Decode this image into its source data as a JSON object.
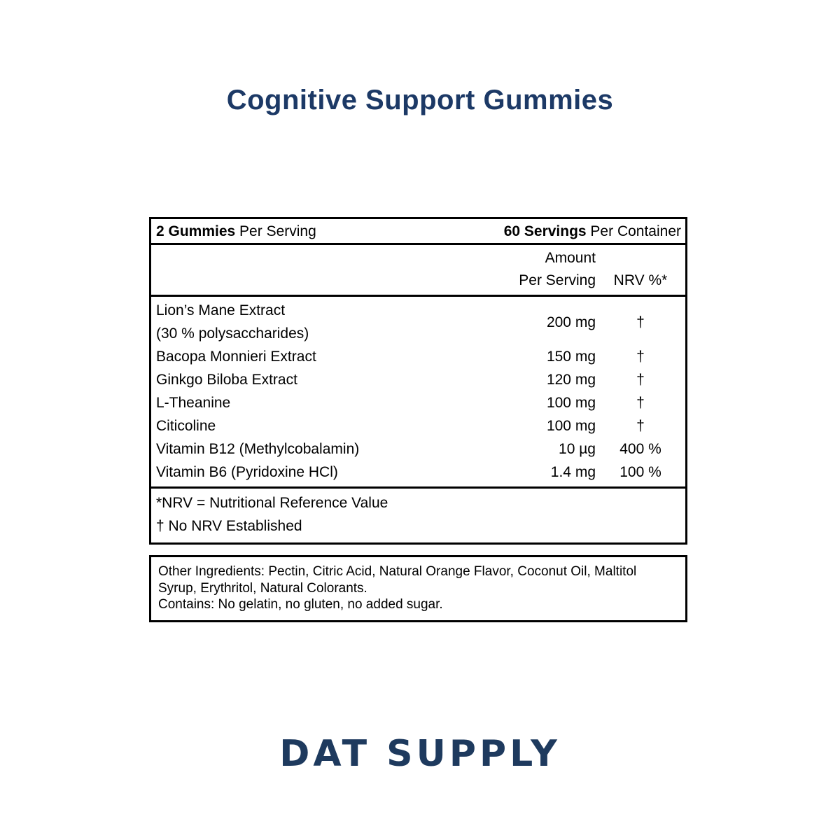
{
  "page": {
    "title": "Cognitive Support Gummies",
    "brand": "DAT SUPPLY"
  },
  "colors": {
    "title_navy": "#1c3966",
    "logo_navy": "#1e3a5e",
    "text": "#000000",
    "border": "#000000",
    "background": "#ffffff"
  },
  "label": {
    "serving": {
      "left_bold": "2 Gummies",
      "left_rest": " Per Serving",
      "right_bold": "60 Servings",
      "right_rest": " Per Container"
    },
    "columns": {
      "amount_line1": "Amount",
      "amount_line2": "Per Serving",
      "nrv": "NRV %*"
    },
    "rows": [
      {
        "name": "Lion’s Mane Extract\n(30 % polysaccharides)",
        "amount": "200 mg",
        "nrv": "†"
      },
      {
        "name": "Bacopa Monnieri Extract",
        "amount": "150 mg",
        "nrv": "†"
      },
      {
        "name": "Ginkgo Biloba Extract",
        "amount": "120 mg",
        "nrv": "†"
      },
      {
        "name": "L-Theanine",
        "amount": "100 mg",
        "nrv": "†"
      },
      {
        "name": "Citicoline",
        "amount": "100 mg",
        "nrv": "†"
      },
      {
        "name": "Vitamin B12 (Methylcobalamin)",
        "amount": "10 µg",
        "nrv": "400 %"
      },
      {
        "name": "Vitamin B6 (Pyridoxine HCl)",
        "amount": "1.4 mg",
        "nrv": "100 %"
      }
    ],
    "footnotes": [
      "*NRV = Nutritional Reference Value",
      "† No NRV Established"
    ],
    "other_ingredients": "Other Ingredients: Pectin, Citric Acid, Natural Orange Flavor, Coconut Oil, Maltitol\nSyrup, Erythritol, Natural Colorants.\nContains: No gelatin, no gluten, no added sugar."
  }
}
